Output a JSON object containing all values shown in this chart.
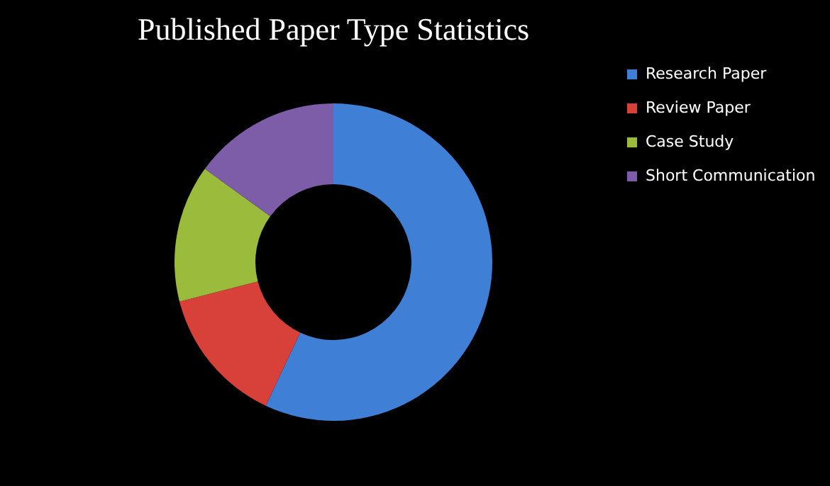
{
  "chart_data": {
    "type": "donut",
    "title": "Published Paper Type Statistics",
    "categories": [
      "Research Paper",
      "Review Paper",
      "Case Study",
      "Short Communication"
    ],
    "values": [
      57,
      14,
      14,
      15
    ],
    "colors": [
      "#3f7fd6",
      "#d8403a",
      "#9bbb3c",
      "#7d5ca8"
    ],
    "legend": "right"
  }
}
